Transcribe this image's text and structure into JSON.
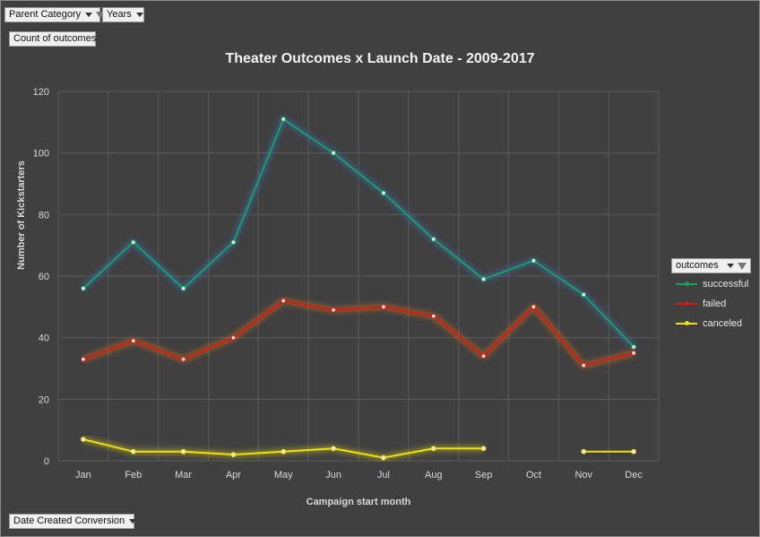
{
  "pivot": {
    "filter_parent_category": "Parent Category",
    "filter_years": "Years",
    "values_field": "Count of outcomes",
    "axis_field": "Date Created Conversion",
    "legend_field": "outcomes"
  },
  "chart_data": {
    "type": "line",
    "title": "Theater Outcomes x Launch Date - 2009-2017",
    "xlabel": "Campaign start month",
    "ylabel": "Number of Kickstarters",
    "categories": [
      "Jan",
      "Feb",
      "Mar",
      "Apr",
      "May",
      "Jun",
      "Jul",
      "Aug",
      "Sep",
      "Oct",
      "Nov",
      "Dec"
    ],
    "ylim": [
      0,
      120
    ],
    "yticks": [
      0,
      20,
      40,
      60,
      80,
      100,
      120
    ],
    "grid": true,
    "legend_position": "right",
    "series": [
      {
        "name": "successful",
        "color": "#16a05a",
        "glow": "#3b6fc4",
        "values": [
          56,
          71,
          56,
          71,
          111,
          100,
          87,
          72,
          59,
          65,
          54,
          37
        ]
      },
      {
        "name": "failed",
        "color": "#d81b0e",
        "glow": "#e07020",
        "values": [
          33,
          39,
          33,
          40,
          52,
          49,
          50,
          47,
          34,
          50,
          31,
          35
        ]
      },
      {
        "name": "canceled",
        "color": "#f0e010",
        "glow": "#c8c020",
        "values": [
          7,
          3,
          3,
          2,
          3,
          4,
          1,
          4,
          4,
          null,
          3,
          3
        ]
      }
    ]
  }
}
